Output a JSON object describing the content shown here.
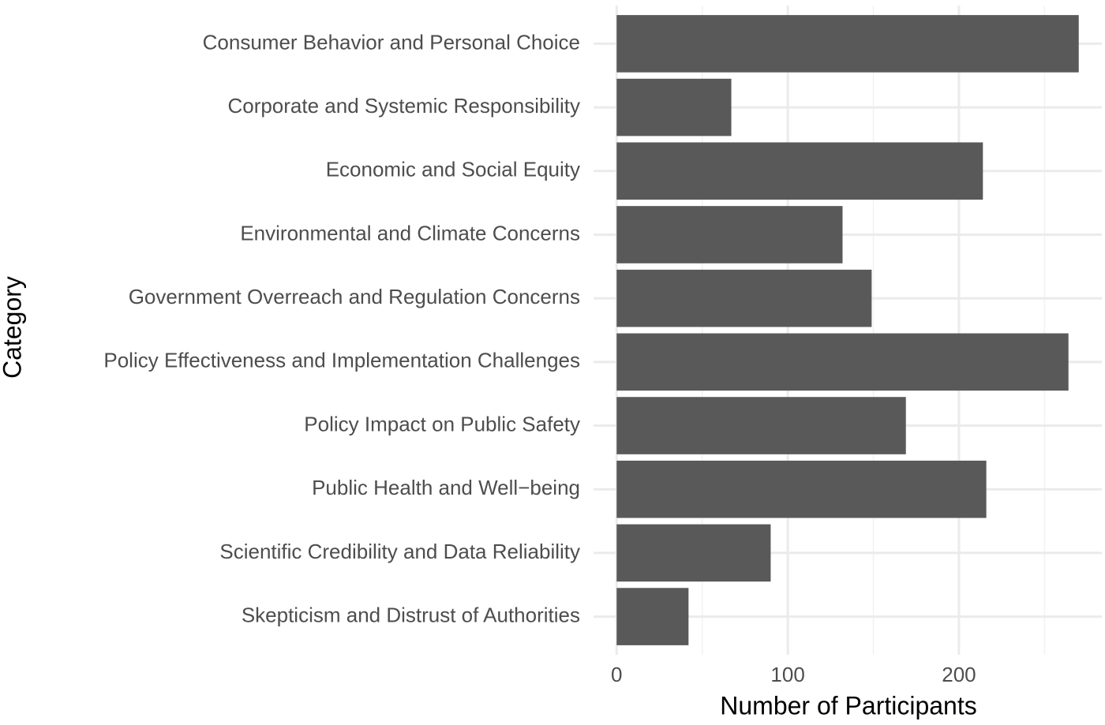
{
  "chart_data": {
    "type": "bar",
    "orientation": "horizontal",
    "x_label": "Number of Participants",
    "y_label": "Category",
    "categories": [
      "Consumer Behavior and Personal Choice",
      "Corporate and Systemic Responsibility",
      "Economic and Social Equity",
      "Environmental and Climate Concerns",
      "Government Overreach and Regulation Concerns",
      "Policy Effectiveness and Implementation Challenges",
      "Policy Impact on Public Safety",
      "Public Health and Well−being",
      "Scientific Credibility and Data Reliability",
      "Skepticism and Distrust of Authorities"
    ],
    "values": [
      270,
      67,
      214,
      132,
      149,
      264,
      169,
      216,
      90,
      42
    ],
    "color": "#595959",
    "xlim": [
      -13.5,
      283.5
    ],
    "xticks": [
      0,
      100,
      200
    ],
    "x_minor_grid": [
      50,
      150,
      250
    ],
    "grid": true
  }
}
